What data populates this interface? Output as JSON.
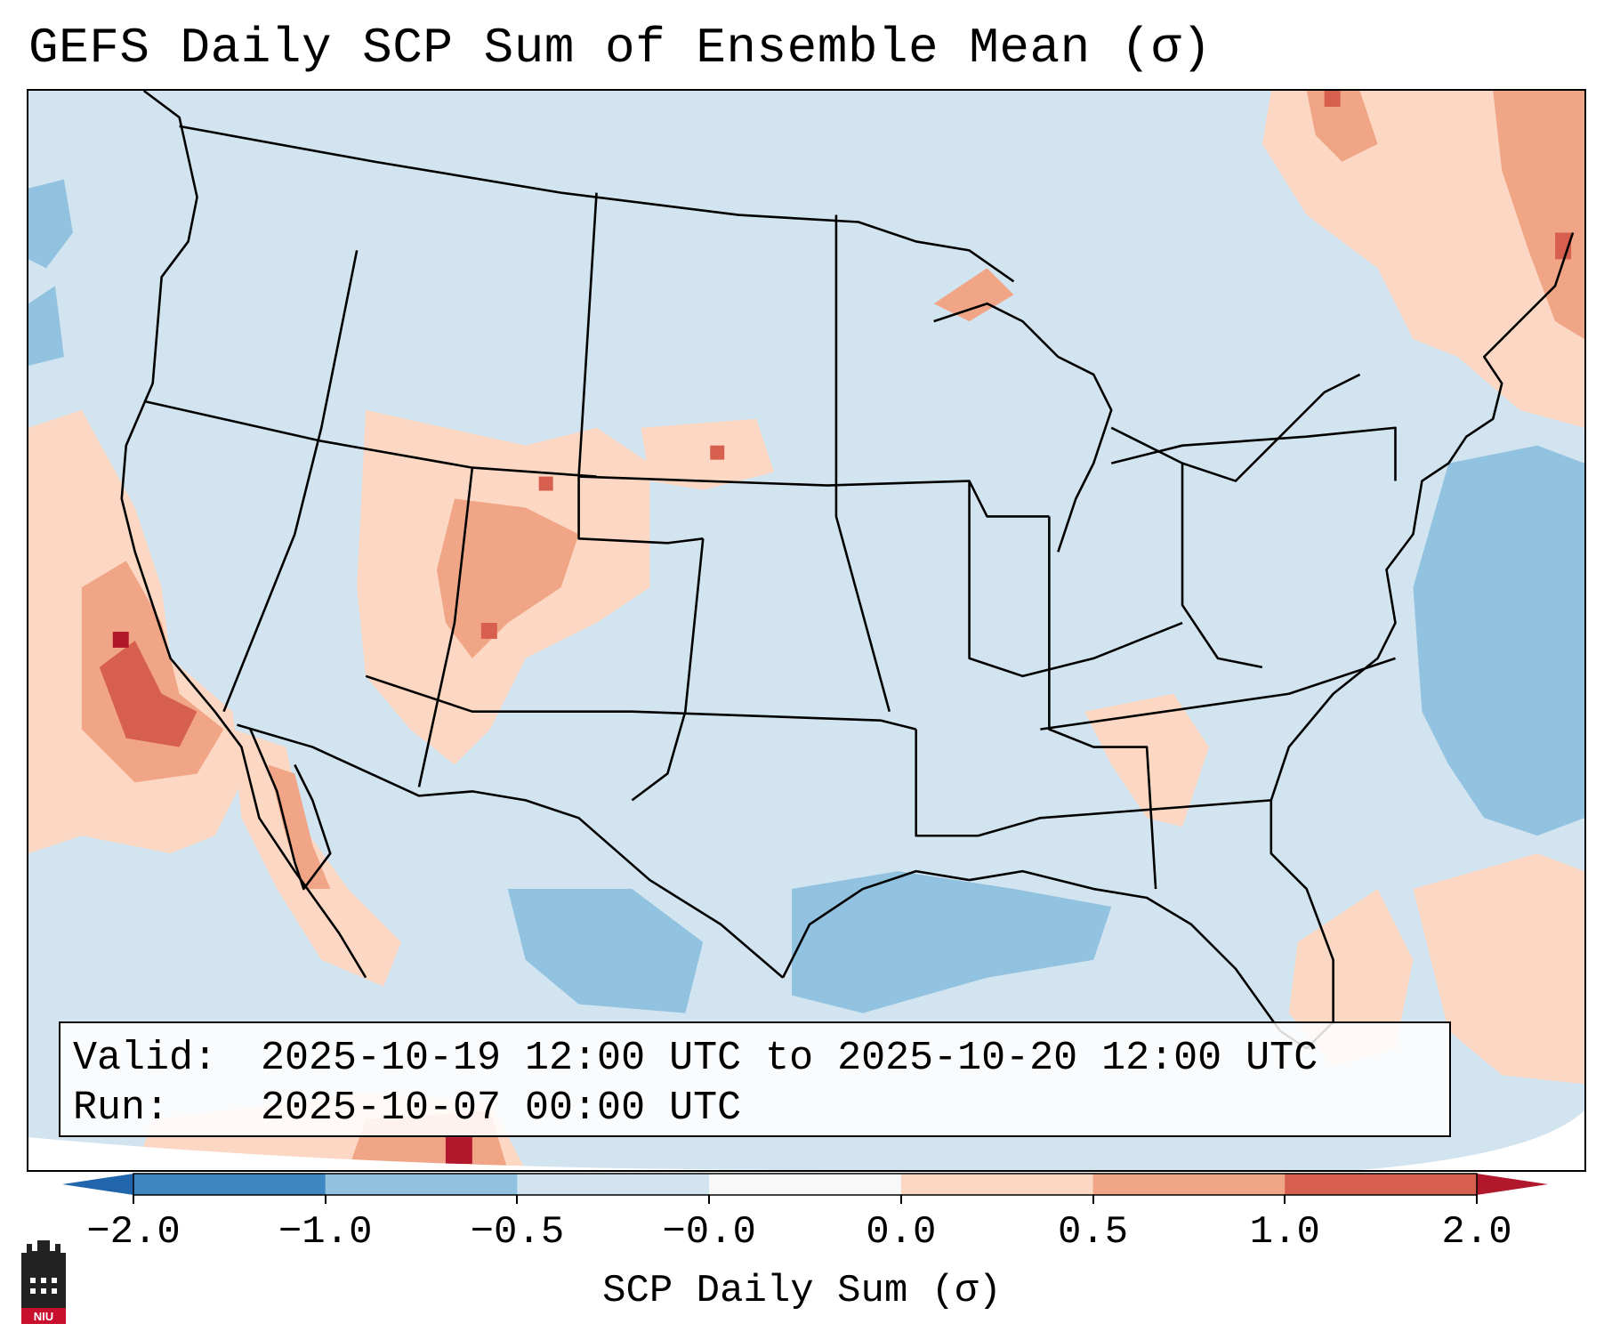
{
  "title": "GEFS Daily SCP Sum of Ensemble Mean (σ)",
  "info": {
    "valid_label": "Valid:",
    "valid_value": "2025-10-19 12:00 UTC to 2025-10-20 12:00 UTC",
    "run_label": "Run:",
    "run_value": "2025-10-07 00:00 UTC"
  },
  "colorbar": {
    "label": "SCP Daily Sum (σ)",
    "ticks": [
      "−2.0",
      "−1.0",
      "−0.5",
      "−0.0",
      "0.0",
      "0.5",
      "1.0",
      "2.0"
    ],
    "colors": [
      "#3f87c2",
      "#91c3e0",
      "#d2e4f0",
      "#f8f8f8",
      "#fcd8c4",
      "#f0a586",
      "#d6604d"
    ],
    "extend_low_color": "#2166ac",
    "extend_high_color": "#b2182b"
  },
  "map": {
    "background_color": "#d2e4f0",
    "state_line_color": "#000000"
  },
  "logo": {
    "text": "NIU",
    "color": "#c8102e",
    "icon": "niu-castle-icon"
  }
}
